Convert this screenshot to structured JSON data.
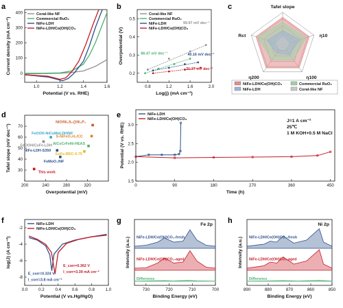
{
  "figure": {
    "panels": [
      "a",
      "b",
      "c",
      "d",
      "e",
      "f",
      "g",
      "h"
    ]
  },
  "colors": {
    "coral": "#8e8e8e",
    "ruo2": "#4cb070",
    "nife": "#2c4f8a",
    "nifece": "#c51b24",
    "red_light": "#e28d8d",
    "green_light": "#9fd1a9",
    "blue_light": "#9fb3d3",
    "gray_light": "#c8c8c8"
  },
  "chart_data": [
    {
      "id": "a",
      "type": "line",
      "xlabel": "Potential (V vs. RHE)",
      "ylabel": "Current density (mA cm⁻²)",
      "xlim": [
        0.9,
        1.6
      ],
      "ylim": [
        -60,
        420
      ],
      "xticks": [
        1.0,
        1.2,
        1.4,
        1.6
      ],
      "yticks": [
        0,
        100,
        200,
        300,
        400
      ],
      "legend": "top-left",
      "series": [
        {
          "name": "Coral-like NF",
          "color": "#8e8e8e",
          "x": [
            0.9,
            1.05,
            1.2,
            1.3,
            1.4,
            1.5,
            1.6
          ],
          "y": [
            -5,
            -2,
            0,
            5,
            15,
            45,
            90
          ]
        },
        {
          "name": "Commercial RuO₂",
          "color": "#4cb070",
          "x": [
            0.9,
            1.05,
            1.2,
            1.3,
            1.4,
            1.45,
            1.5,
            1.55,
            1.6
          ],
          "y": [
            0,
            0,
            2,
            15,
            60,
            120,
            200,
            300,
            400
          ]
        },
        {
          "name": "NiFe-LDH",
          "color": "#2c4f8a",
          "x": [
            0.9,
            1.1,
            1.22,
            1.27,
            1.32,
            1.4,
            1.45,
            1.5,
            1.56
          ],
          "y": [
            -10,
            -25,
            -50,
            -35,
            0,
            80,
            180,
            300,
            420
          ]
        },
        {
          "name": "NiFe-LDH/Ce(OH)CO₃",
          "color": "#c51b24",
          "x": [
            0.9,
            1.1,
            1.2,
            1.25,
            1.3,
            1.36,
            1.42,
            1.48,
            1.53
          ],
          "y": [
            -10,
            -20,
            -40,
            -30,
            10,
            80,
            190,
            320,
            420
          ]
        }
      ]
    },
    {
      "id": "b",
      "type": "line",
      "xlabel": "Log(j) (mA cm⁻²)",
      "ylabel": "Overpotential (V)",
      "xlim": [
        0.6,
        2.0
      ],
      "ylim": [
        0.15,
        0.55
      ],
      "xticks": [
        0.8,
        1.2,
        1.6,
        2.0
      ],
      "yticks": [
        0.2,
        0.3,
        0.4,
        0.5
      ],
      "legend": "top-left",
      "annotations": [
        "99.97 mV dec⁻¹",
        "86.47 mV dec⁻¹",
        "40.16 mV dec⁻¹",
        "31.37 mV dec⁻¹"
      ],
      "series": [
        {
          "name": "Coral-like NF",
          "color": "#8e8e8e",
          "x": [
            0.8,
            1.2,
            1.6,
            1.9
          ],
          "y": [
            0.22,
            0.28,
            0.32,
            0.355
          ]
        },
        {
          "name": "Commercial RuO₂",
          "color": "#4cb070",
          "x": [
            0.75,
            1.0,
            1.3,
            1.6
          ],
          "y": [
            0.2,
            0.225,
            0.25,
            0.28
          ]
        },
        {
          "name": "NiFe-LDH",
          "color": "#2c4f8a",
          "x": [
            0.9,
            1.2,
            1.5,
            1.75
          ],
          "y": [
            0.215,
            0.23,
            0.25,
            0.26
          ]
        },
        {
          "name": "NiFe-LDH/Ce(OH)CO₃",
          "color": "#c51b24",
          "x": [
            0.9,
            1.2,
            1.5,
            1.8
          ],
          "y": [
            0.2,
            0.21,
            0.22,
            0.23
          ]
        }
      ]
    },
    {
      "id": "c",
      "type": "radar",
      "title": "Tafel slope",
      "axes": [
        "Tafel slope",
        "η10",
        "η100",
        "η200",
        "Rct"
      ],
      "rings": 5,
      "legend": "bottom",
      "series": [
        {
          "name": "NiFe-LDH/Ce(OH)CO₃",
          "color": "#e28d8d",
          "values": [
            0.85,
            0.85,
            0.85,
            0.85,
            0.85
          ]
        },
        {
          "name": "Commercial RuO₂",
          "color": "#9fd1a9",
          "values": [
            0.7,
            0.75,
            0.55,
            0.55,
            0.8
          ]
        },
        {
          "name": "NiFe-LDH",
          "color": "#9fb3d3",
          "values": [
            0.45,
            0.55,
            0.35,
            0.3,
            0.5
          ]
        },
        {
          "name": "Coral-like NF",
          "color": "#c8c8c8",
          "values": [
            0.25,
            0.2,
            0.15,
            0.15,
            0.2
          ]
        }
      ]
    },
    {
      "id": "d",
      "type": "scatter",
      "xlabel": "Overpotential (mV)",
      "ylabel": "Tafel slope (mV dec⁻¹)",
      "xlim": [
        200,
        360
      ],
      "ylim": [
        20,
        80
      ],
      "xticks": [
        200,
        240,
        280,
        320
      ],
      "yticks": [
        30,
        40,
        50,
        60,
        70
      ],
      "points": [
        {
          "label": "This work",
          "x": 218,
          "y": 31,
          "color": "#c51b24"
        },
        {
          "label": "FeOOH-NiCoMoLDH/NF",
          "x": 250,
          "y": 60,
          "color": "#3aa7c8"
        },
        {
          "label": "FeOOH/CoFe-LDH",
          "x": 236,
          "y": 56,
          "color": "#8e8e8e"
        },
        {
          "label": "NiFe-LDH-S350",
          "x": 262,
          "y": 48,
          "color": "#2c4f8a"
        },
        {
          "label": "FeMoO₄/NF",
          "x": 268,
          "y": 42,
          "color": "#2c4f8a"
        },
        {
          "label": "NiO/Ni₃S₂@Ni₃P₂",
          "x": 330,
          "y": 71,
          "color": "#c75a2a"
        },
        {
          "label": "S-NiFeO₂H₂/CC",
          "x": 328,
          "y": 61,
          "color": "#d9822b"
        },
        {
          "label": "AlCoCrFeNi-HEAS",
          "x": 322,
          "y": 52,
          "color": "#4cb070"
        },
        {
          "label": "EnFe-BDC-0.75",
          "x": 314,
          "y": 47,
          "color": "#e3b91f"
        }
      ]
    },
    {
      "id": "e",
      "type": "line",
      "xlabel": "Time (h)",
      "ylabel": "Potential (V vs. RHE)",
      "xlim": [
        0,
        460
      ],
      "ylim": [
        1.5,
        3.4
      ],
      "xticks": [
        0,
        90,
        180,
        270,
        360,
        450
      ],
      "yticks": [
        1.5,
        2.0,
        2.5,
        3.0
      ],
      "legend": "top-left",
      "annotations": [
        "J=1 A cm⁻²",
        "25℃",
        "1 M KOH+0.5 M NaCl"
      ],
      "series": [
        {
          "name": "NiFe-LDH",
          "color": "#2c4f8a",
          "x": [
            0,
            30,
            60,
            90,
            100,
            103,
            104
          ],
          "y": [
            2.15,
            2.2,
            2.2,
            2.2,
            2.22,
            2.3,
            3.05
          ]
        },
        {
          "name": "NiFe-LDH/Ce(OH)CO₃",
          "color": "#c51b24",
          "x": [
            0,
            90,
            180,
            270,
            360,
            420,
            450
          ],
          "y": [
            2.15,
            2.12,
            2.13,
            2.14,
            2.15,
            2.18,
            2.28
          ]
        }
      ]
    },
    {
      "id": "f",
      "type": "line",
      "xlabel": "Potential (V vs.Hg/HgO)",
      "ylabel": "log(J) (A cm⁻²)",
      "xlim": [
        0.0,
        1.0
      ],
      "ylim": [
        -9,
        -1
      ],
      "xticks": [
        0.0,
        0.2,
        0.4,
        0.6,
        0.8,
        1.0
      ],
      "yticks": [
        -8,
        -6,
        -4,
        -2
      ],
      "legend": "top-left",
      "annotations": [
        "E_corr=0.362 V",
        "I_corr=3.39 mA cm⁻²",
        "E_corr=0.324 V",
        "I_corr=3.8 mA cm⁻²"
      ],
      "series": [
        {
          "name": "NiFe-LDH",
          "color": "#2c4f8a",
          "x": [
            0.05,
            0.15,
            0.25,
            0.3,
            0.324,
            0.35,
            0.45,
            0.6,
            0.8,
            0.98
          ],
          "y": [
            -3.2,
            -3.5,
            -4.2,
            -5.3,
            -7.2,
            -5.2,
            -4.0,
            -3.5,
            -3.1,
            -2.8
          ]
        },
        {
          "name": "NiFe-LDH/Ce(OH)CO₃",
          "color": "#c51b24",
          "x": [
            0.05,
            0.15,
            0.25,
            0.32,
            0.362,
            0.4,
            0.5,
            0.65,
            0.8,
            0.98
          ],
          "y": [
            -3.0,
            -3.4,
            -4.0,
            -5.0,
            -7.6,
            -5.0,
            -3.9,
            -3.4,
            -3.1,
            -2.9
          ]
        }
      ]
    },
    {
      "id": "g",
      "type": "area",
      "title": "Fe 2p",
      "xlabel": "Binding Energy (eV)",
      "ylabel": "Intensity (a.u.)",
      "xlim": [
        735,
        700
      ],
      "xticks": [
        730,
        720,
        710,
        700
      ],
      "labels": [
        "NiFe-LDH/Ce(OH)CO₃-fresh",
        "NiFe-LDH/Ce(OH)CO₃-aged",
        "Difference"
      ],
      "series": [
        {
          "name": "NiFe-LDH/Ce(OH)CO₃-fresh",
          "color": "#2c4f8a",
          "x": [
            735,
            730,
            725,
            722,
            718,
            714,
            711,
            708,
            704,
            700
          ],
          "y": [
            0.1,
            0.15,
            0.3,
            0.5,
            0.3,
            0.35,
            0.9,
            0.4,
            0.15,
            0.1
          ]
        },
        {
          "name": "NiFe-LDH/Ce(OH)CO₃-aged",
          "color": "#c51b24",
          "x": [
            735,
            730,
            725,
            722,
            718,
            714,
            711,
            708,
            704,
            700
          ],
          "y": [
            0.1,
            0.12,
            0.35,
            0.6,
            0.35,
            0.4,
            0.95,
            0.45,
            0.15,
            0.1
          ]
        },
        {
          "name": "Difference",
          "color": "#4cb070",
          "x": [
            735,
            728,
            722,
            718,
            712,
            708,
            700
          ],
          "y": [
            0.02,
            0.05,
            0.08,
            0.03,
            0.1,
            0.05,
            0.02
          ]
        }
      ]
    },
    {
      "id": "h",
      "type": "area",
      "title": "Ni 2p",
      "xlabel": "Binding Energy (eV)",
      "ylabel": "Intensity (a.u.)",
      "xlim": [
        890,
        850
      ],
      "xticks": [
        890,
        880,
        870,
        860,
        850
      ],
      "labels": [
        "NiFe-LDH/Ce(OH)CO₃-fresh",
        "NiFe-LDH/Ce(OH)CO₃-aged",
        "Difference"
      ],
      "series": [
        {
          "name": "NiFe-LDH/Ce(OH)CO₃-fresh",
          "color": "#2c4f8a",
          "x": [
            890,
            882,
            879,
            876,
            873,
            868,
            862,
            856,
            854,
            850
          ],
          "y": [
            0.1,
            0.2,
            0.35,
            0.3,
            0.6,
            0.25,
            0.4,
            0.95,
            0.3,
            0.1
          ]
        },
        {
          "name": "NiFe-LDH/Ce(OH)CO₃-aged",
          "color": "#c51b24",
          "x": [
            890,
            882,
            879,
            876,
            873,
            868,
            862,
            856,
            854,
            850
          ],
          "y": [
            0.1,
            0.22,
            0.4,
            0.35,
            0.65,
            0.3,
            0.45,
            1.0,
            0.3,
            0.1
          ]
        },
        {
          "name": "Difference",
          "color": "#4cb070",
          "x": [
            890,
            880,
            873,
            866,
            856,
            850
          ],
          "y": [
            0.02,
            0.04,
            0.08,
            0.03,
            0.1,
            0.02
          ]
        }
      ]
    }
  ]
}
